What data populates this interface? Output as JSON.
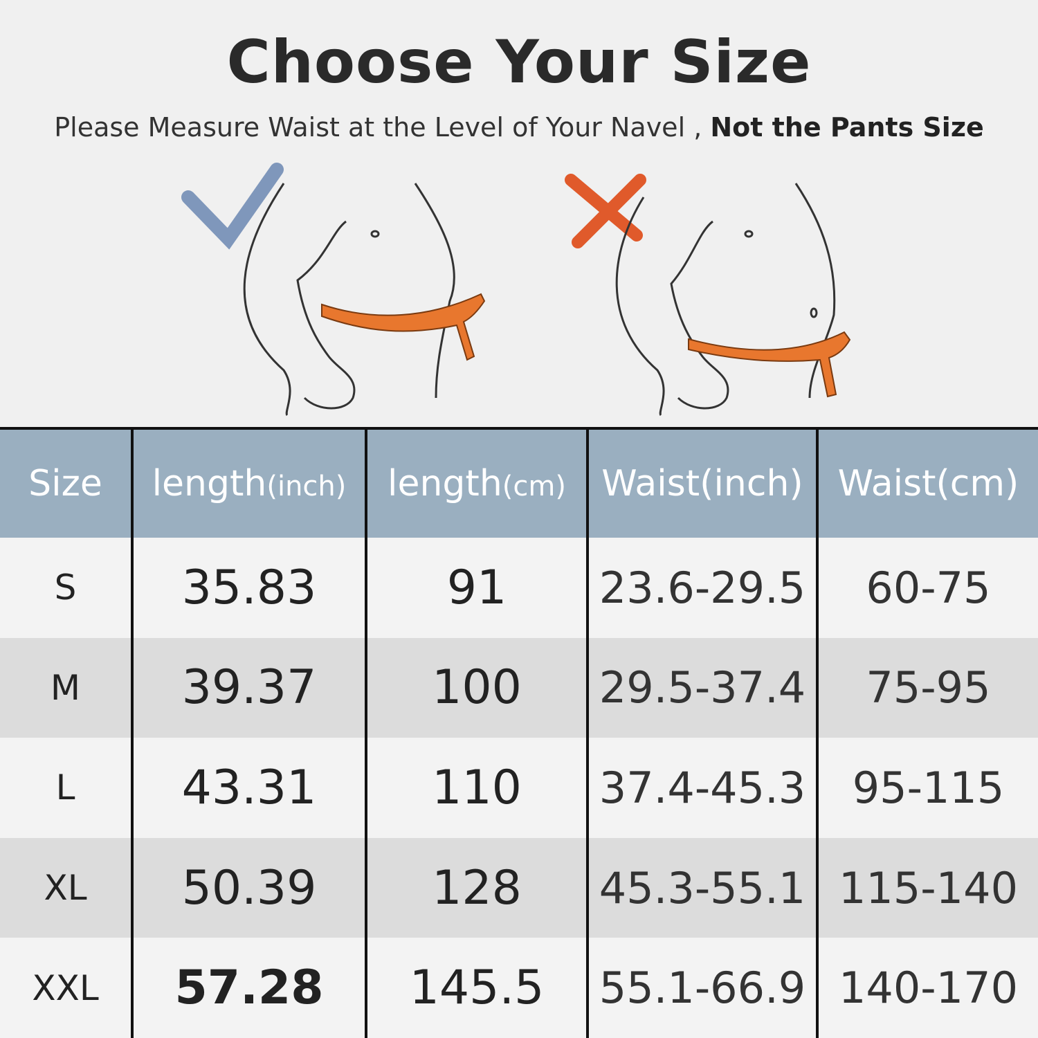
{
  "title": "Choose Your Size",
  "subtitle": {
    "normal": "Please Measure Waist at the Level of Your Navel ,",
    "bold": "Not the Pants Size"
  },
  "illustrations": [
    {
      "mark": "check-icon",
      "color": "#7f97bb",
      "tape_color": "#e8772e"
    },
    {
      "mark": "cross-icon",
      "color": "#e05a2b",
      "tape_color": "#e8772e"
    }
  ],
  "table": {
    "header_color": "#9aafc0",
    "headers": [
      {
        "main": "Size",
        "unit": ""
      },
      {
        "main": "length",
        "unit": "(inch)"
      },
      {
        "main": "length",
        "unit": "(cm)"
      },
      {
        "main": "Waist(inch)",
        "unit": ""
      },
      {
        "main": "Waist(cm)",
        "unit": ""
      }
    ],
    "rows": [
      [
        "S",
        "35.83",
        "91",
        "23.6-29.5",
        "60-75"
      ],
      [
        "M",
        "39.37",
        "100",
        "29.5-37.4",
        "75-95"
      ],
      [
        "L",
        "43.31",
        "110",
        "37.4-45.3",
        "95-115"
      ],
      [
        "XL",
        "50.39",
        "128",
        "45.3-55.1",
        "115-140"
      ],
      [
        "XXL",
        "57.28",
        "145.5",
        "55.1-66.9",
        "140-170"
      ]
    ]
  }
}
